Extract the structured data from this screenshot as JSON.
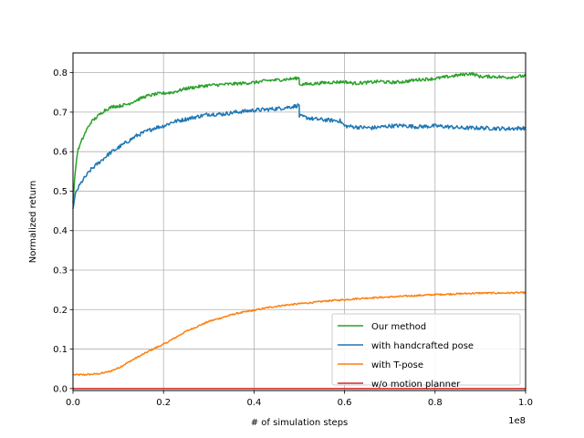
{
  "chart_data": {
    "type": "line",
    "title": "",
    "xlabel": "# of simulation steps",
    "ylabel": "Normalized return",
    "x_offset_label": "1e8",
    "xlim": [
      0.0,
      1.0
    ],
    "ylim": [
      -0.005,
      0.85
    ],
    "xticks": [
      "0.0",
      "0.2",
      "0.4",
      "0.6",
      "0.8",
      "1.0"
    ],
    "yticks": [
      "0.0",
      "0.1",
      "0.2",
      "0.3",
      "0.4",
      "0.5",
      "0.6",
      "0.7",
      "0.8"
    ],
    "grid": true,
    "legend_position": "lower-right",
    "series": [
      {
        "name": "Our method",
        "color": "#2ca02c",
        "x": [
          0.0,
          0.005,
          0.01,
          0.02,
          0.03,
          0.04,
          0.05,
          0.06,
          0.07,
          0.08,
          0.09,
          0.1,
          0.12,
          0.14,
          0.16,
          0.18,
          0.2,
          0.22,
          0.25,
          0.28,
          0.3,
          0.33,
          0.36,
          0.4,
          0.43,
          0.46,
          0.49,
          0.5,
          0.5,
          0.53,
          0.56,
          0.6,
          0.62,
          0.65,
          0.68,
          0.7,
          0.73,
          0.76,
          0.8,
          0.83,
          0.86,
          0.88,
          0.9,
          0.93,
          0.96,
          1.0
        ],
        "y": [
          0.47,
          0.55,
          0.6,
          0.63,
          0.655,
          0.675,
          0.685,
          0.695,
          0.705,
          0.71,
          0.715,
          0.715,
          0.72,
          0.73,
          0.74,
          0.745,
          0.748,
          0.75,
          0.76,
          0.765,
          0.768,
          0.77,
          0.772,
          0.775,
          0.78,
          0.782,
          0.785,
          0.787,
          0.77,
          0.772,
          0.775,
          0.777,
          0.773,
          0.775,
          0.778,
          0.775,
          0.777,
          0.782,
          0.785,
          0.79,
          0.795,
          0.798,
          0.79,
          0.79,
          0.788,
          0.792
        ]
      },
      {
        "name": "with handcrafted pose",
        "color": "#1f77b4",
        "x": [
          0.0,
          0.005,
          0.01,
          0.02,
          0.03,
          0.04,
          0.05,
          0.06,
          0.07,
          0.08,
          0.1,
          0.12,
          0.14,
          0.16,
          0.18,
          0.2,
          0.22,
          0.24,
          0.26,
          0.28,
          0.3,
          0.33,
          0.36,
          0.4,
          0.43,
          0.46,
          0.49,
          0.5,
          0.5,
          0.53,
          0.56,
          0.59,
          0.6,
          0.63,
          0.66,
          0.7,
          0.73,
          0.76,
          0.8,
          0.83,
          0.86,
          0.9,
          0.93,
          0.96,
          1.0
        ],
        "y": [
          0.455,
          0.49,
          0.505,
          0.525,
          0.54,
          0.555,
          0.565,
          0.575,
          0.585,
          0.595,
          0.61,
          0.625,
          0.64,
          0.65,
          0.66,
          0.665,
          0.675,
          0.68,
          0.685,
          0.69,
          0.695,
          0.695,
          0.7,
          0.705,
          0.707,
          0.71,
          0.715,
          0.718,
          0.69,
          0.683,
          0.68,
          0.678,
          0.665,
          0.662,
          0.66,
          0.665,
          0.666,
          0.663,
          0.665,
          0.663,
          0.66,
          0.66,
          0.659,
          0.658,
          0.66
        ]
      },
      {
        "name": "with T-pose",
        "color": "#ff7f0e",
        "x": [
          0.0,
          0.02,
          0.04,
          0.06,
          0.08,
          0.1,
          0.12,
          0.14,
          0.16,
          0.18,
          0.2,
          0.22,
          0.25,
          0.28,
          0.3,
          0.33,
          0.36,
          0.4,
          0.43,
          0.46,
          0.5,
          0.53,
          0.56,
          0.6,
          0.63,
          0.66,
          0.7,
          0.75,
          0.8,
          0.85,
          0.9,
          0.95,
          1.0
        ],
        "y": [
          0.035,
          0.035,
          0.036,
          0.038,
          0.043,
          0.052,
          0.065,
          0.078,
          0.09,
          0.102,
          0.112,
          0.125,
          0.145,
          0.16,
          0.17,
          0.18,
          0.19,
          0.198,
          0.205,
          0.21,
          0.215,
          0.218,
          0.222,
          0.225,
          0.228,
          0.23,
          0.232,
          0.235,
          0.238,
          0.24,
          0.242,
          0.242,
          0.243
        ]
      },
      {
        "name": "w/o motion planner",
        "color": "#d62728",
        "x": [
          0.0,
          1.0
        ],
        "y": [
          0.0,
          0.0
        ]
      }
    ]
  }
}
